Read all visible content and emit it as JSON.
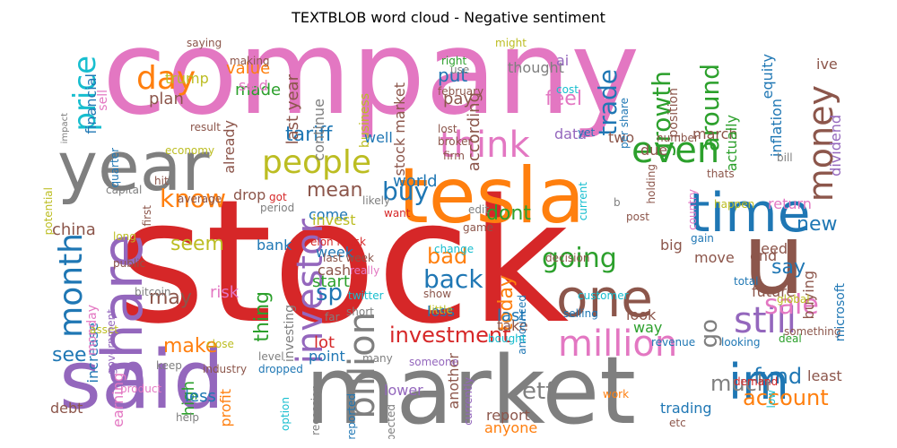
{
  "title": "TEXTBLOB word cloud - Negative sentiment",
  "colors": {
    "red": "#d62728",
    "pink": "#e377c2",
    "gray": "#7f7f7f",
    "orange": "#ff7f0e",
    "blue": "#1f77b4",
    "purple": "#9467bd",
    "green": "#2ca02c",
    "olive": "#bcbd22",
    "cyan": "#17becf",
    "brown": "#8c564b"
  },
  "words": [
    {
      "text": "stock",
      "color": "red"
    },
    {
      "text": "company",
      "color": "pink"
    },
    {
      "text": "market",
      "color": "gray"
    },
    {
      "text": "said",
      "color": "purple"
    },
    {
      "text": "tesla",
      "color": "orange"
    },
    {
      "text": "year",
      "color": "gray"
    },
    {
      "text": "share",
      "color": "purple"
    },
    {
      "text": "u",
      "color": "brown"
    },
    {
      "text": "one",
      "color": "brown"
    },
    {
      "text": "time",
      "color": "blue"
    },
    {
      "text": "im",
      "color": "blue"
    },
    {
      "text": "investor",
      "color": "purple"
    },
    {
      "text": "think",
      "color": "pink"
    },
    {
      "text": "people",
      "color": "olive"
    },
    {
      "text": "even",
      "color": "green"
    },
    {
      "text": "billion",
      "color": "gray"
    },
    {
      "text": "million",
      "color": "pink"
    },
    {
      "text": "still",
      "color": "purple"
    },
    {
      "text": "money",
      "color": "brown"
    },
    {
      "text": "month",
      "color": "blue"
    },
    {
      "text": "day",
      "color": "orange"
    },
    {
      "text": "price",
      "color": "cyan"
    },
    {
      "text": "investment",
      "color": "red"
    },
    {
      "text": "sale",
      "color": "pink"
    },
    {
      "text": "going",
      "color": "green"
    },
    {
      "text": "know",
      "color": "orange"
    },
    {
      "text": "buy",
      "color": "blue"
    },
    {
      "text": "back",
      "color": "blue"
    },
    {
      "text": "trade",
      "color": "blue"
    },
    {
      "text": "growth",
      "color": "green"
    },
    {
      "text": "around",
      "color": "green"
    },
    {
      "text": "fund",
      "color": "blue"
    },
    {
      "text": "account",
      "color": "orange"
    },
    {
      "text": "etf",
      "color": "gray"
    },
    {
      "text": "much",
      "color": "gray"
    },
    {
      "text": "mean",
      "color": "brown"
    },
    {
      "text": "tariff",
      "color": "blue"
    },
    {
      "text": "sp",
      "color": "blue"
    },
    {
      "text": "bad",
      "color": "orange"
    },
    {
      "text": "may",
      "color": "brown"
    },
    {
      "text": "dont",
      "color": "green"
    },
    {
      "text": "seem",
      "color": "olive"
    },
    {
      "text": "make",
      "color": "orange"
    },
    {
      "text": "thing",
      "color": "green"
    },
    {
      "text": "today",
      "color": "orange"
    },
    {
      "text": "see",
      "color": "blue"
    },
    {
      "text": "go",
      "color": "gray"
    },
    {
      "text": "new",
      "color": "blue"
    },
    {
      "text": "say",
      "color": "blue"
    },
    {
      "text": "last year",
      "color": "brown"
    },
    {
      "text": "stock market",
      "color": "brown"
    },
    {
      "text": "put",
      "color": "blue"
    },
    {
      "text": "pay",
      "color": "brown"
    },
    {
      "text": "feel",
      "color": "pink"
    },
    {
      "text": "according",
      "color": "brown"
    },
    {
      "text": "value",
      "color": "orange"
    },
    {
      "text": "made",
      "color": "green"
    },
    {
      "text": "plan",
      "color": "brown"
    },
    {
      "text": "trump",
      "color": "olive"
    },
    {
      "text": "sold",
      "color": "pink"
    },
    {
      "text": "financial",
      "color": "blue"
    },
    {
      "text": "continue",
      "color": "gray"
    },
    {
      "text": "business",
      "color": "olive"
    },
    {
      "text": "thought",
      "color": "gray"
    },
    {
      "text": "world",
      "color": "blue"
    },
    {
      "text": "come",
      "color": "blue"
    },
    {
      "text": "well",
      "color": "blue"
    },
    {
      "text": "data",
      "color": "purple"
    },
    {
      "text": "two",
      "color": "brown"
    },
    {
      "text": "due",
      "color": "brown"
    },
    {
      "text": "march",
      "color": "brown"
    },
    {
      "text": "actually",
      "color": "green"
    },
    {
      "text": "inflation",
      "color": "blue"
    },
    {
      "text": "dividend",
      "color": "purple"
    },
    {
      "text": "return",
      "color": "pink"
    },
    {
      "text": "equity",
      "color": "blue"
    },
    {
      "text": "ive",
      "color": "brown"
    },
    {
      "text": "position",
      "color": "brown"
    },
    {
      "text": "per share",
      "color": "blue"
    },
    {
      "text": "china",
      "color": "brown"
    },
    {
      "text": "bank",
      "color": "blue"
    },
    {
      "text": "drop",
      "color": "brown"
    },
    {
      "text": "already",
      "color": "brown"
    },
    {
      "text": "risk",
      "color": "pink"
    },
    {
      "text": "invest",
      "color": "olive"
    },
    {
      "text": "week",
      "color": "blue"
    },
    {
      "text": "start",
      "color": "green"
    },
    {
      "text": "cash",
      "color": "brown"
    },
    {
      "text": "lot",
      "color": "red"
    },
    {
      "text": "point",
      "color": "blue"
    },
    {
      "text": "increase",
      "color": "blue"
    },
    {
      "text": "high",
      "color": "green"
    },
    {
      "text": "less",
      "color": "blue"
    },
    {
      "text": "debt",
      "color": "brown"
    },
    {
      "text": "profit",
      "color": "orange"
    },
    {
      "text": "earning",
      "color": "pink"
    },
    {
      "text": "loss",
      "color": "blue"
    },
    {
      "text": "last",
      "color": "blue"
    },
    {
      "text": "take",
      "color": "brown"
    },
    {
      "text": "another",
      "color": "brown"
    },
    {
      "text": "report",
      "color": "brown"
    },
    {
      "text": "anyone",
      "color": "orange"
    },
    {
      "text": "lower",
      "color": "purple"
    },
    {
      "text": "trading",
      "color": "blue"
    },
    {
      "text": "look",
      "color": "brown"
    },
    {
      "text": "way",
      "color": "green"
    },
    {
      "text": "move",
      "color": "brown"
    },
    {
      "text": "big",
      "color": "brown"
    },
    {
      "text": "need",
      "color": "brown"
    },
    {
      "text": "end",
      "color": "brown"
    },
    {
      "text": "future",
      "color": "brown"
    },
    {
      "text": "buying",
      "color": "brown"
    },
    {
      "text": "least",
      "color": "brown"
    },
    {
      "text": "monday",
      "color": "pink"
    },
    {
      "text": "saying",
      "color": "brown"
    },
    {
      "text": "making",
      "color": "brown"
    },
    {
      "text": "sell",
      "color": "pink"
    },
    {
      "text": "impact",
      "color": "gray"
    },
    {
      "text": "result",
      "color": "brown"
    },
    {
      "text": "economy",
      "color": "olive"
    },
    {
      "text": "hit",
      "color": "brown"
    },
    {
      "text": "quarter",
      "color": "blue"
    },
    {
      "text": "potential",
      "color": "olive"
    },
    {
      "text": "capital",
      "color": "gray"
    },
    {
      "text": "average",
      "color": "brown"
    },
    {
      "text": "first",
      "color": "brown"
    },
    {
      "text": "long",
      "color": "olive"
    },
    {
      "text": "public",
      "color": "brown"
    },
    {
      "text": "bitcoin",
      "color": "gray"
    },
    {
      "text": "asset",
      "color": "olive"
    },
    {
      "text": "government",
      "color": "purple"
    },
    {
      "text": "industry",
      "color": "brown"
    },
    {
      "text": "keep",
      "color": "gray"
    },
    {
      "text": "product",
      "color": "pink"
    },
    {
      "text": "help",
      "color": "gray"
    },
    {
      "text": "close",
      "color": "olive"
    },
    {
      "text": "period",
      "color": "gray"
    },
    {
      "text": "got",
      "color": "red"
    },
    {
      "text": "elon musk",
      "color": "red"
    },
    {
      "text": "last week",
      "color": "brown"
    },
    {
      "text": "level",
      "color": "gray"
    },
    {
      "text": "dropped",
      "color": "blue"
    },
    {
      "text": "investing",
      "color": "gray"
    },
    {
      "text": "option",
      "color": "cyan"
    },
    {
      "text": "recession",
      "color": "gray"
    },
    {
      "text": "reported",
      "color": "blue"
    },
    {
      "text": "expected",
      "color": "gray"
    },
    {
      "text": "many",
      "color": "gray"
    },
    {
      "text": "someone",
      "color": "purple"
    },
    {
      "text": "far",
      "color": "gray"
    },
    {
      "text": "short",
      "color": "gray"
    },
    {
      "text": "twitter",
      "color": "cyan"
    },
    {
      "text": "really",
      "color": "pink"
    },
    {
      "text": "little",
      "color": "olive"
    },
    {
      "text": "show",
      "color": "brown"
    },
    {
      "text": "change",
      "color": "cyan"
    },
    {
      "text": "likely",
      "color": "gray"
    },
    {
      "text": "want",
      "color": "red"
    },
    {
      "text": "edit",
      "color": "gray"
    },
    {
      "text": "game",
      "color": "brown"
    },
    {
      "text": "firm",
      "color": "brown"
    },
    {
      "text": "broker",
      "color": "brown"
    },
    {
      "text": "lost",
      "color": "brown"
    },
    {
      "text": "february",
      "color": "brown"
    },
    {
      "text": "right",
      "color": "green"
    },
    {
      "text": "use",
      "color": "gray"
    },
    {
      "text": "might",
      "color": "olive"
    },
    {
      "text": "ai",
      "color": "purple"
    },
    {
      "text": "cost",
      "color": "cyan"
    },
    {
      "text": "yet",
      "color": "blue"
    },
    {
      "text": "number",
      "color": "brown"
    },
    {
      "text": "holding",
      "color": "brown"
    },
    {
      "text": "current",
      "color": "cyan"
    },
    {
      "text": "b",
      "color": "gray"
    },
    {
      "text": "post",
      "color": "brown"
    },
    {
      "text": "country",
      "color": "pink"
    },
    {
      "text": "happen",
      "color": "olive"
    },
    {
      "text": "thats",
      "color": "brown"
    },
    {
      "text": "bill",
      "color": "gray"
    },
    {
      "text": "low",
      "color": "cyan"
    },
    {
      "text": "deal",
      "color": "green"
    },
    {
      "text": "gain",
      "color": "blue"
    },
    {
      "text": "decision",
      "color": "brown"
    },
    {
      "text": "customer",
      "color": "cyan"
    },
    {
      "text": "announced",
      "color": "blue"
    },
    {
      "text": "selling",
      "color": "blue"
    },
    {
      "text": "bought",
      "color": "cyan"
    },
    {
      "text": "currently",
      "color": "purple"
    },
    {
      "text": "revenue",
      "color": "blue"
    },
    {
      "text": "looking",
      "color": "blue"
    },
    {
      "text": "something",
      "color": "brown"
    },
    {
      "text": "total",
      "color": "blue"
    },
    {
      "text": "global",
      "color": "olive"
    },
    {
      "text": "microsoft",
      "color": "blue"
    },
    {
      "text": "demand",
      "color": "red"
    },
    {
      "text": "work",
      "color": "orange"
    },
    {
      "text": "etc",
      "color": "brown"
    }
  ]
}
